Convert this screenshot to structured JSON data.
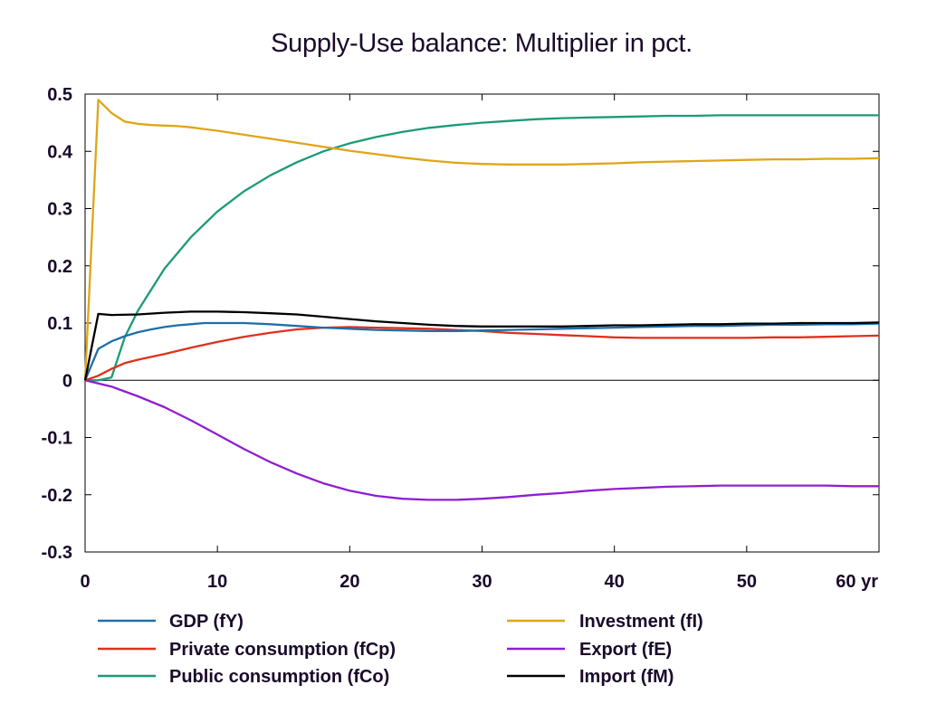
{
  "chart_data": {
    "type": "line",
    "title": "Supply-Use balance: Multiplier in pct.",
    "xlabel": "",
    "ylabel": "",
    "x_unit_label": "yr",
    "xlim": [
      0,
      60
    ],
    "ylim": [
      -0.3,
      0.5
    ],
    "x_ticks": [
      0,
      10,
      20,
      30,
      40,
      50,
      60
    ],
    "y_ticks": [
      -0.3,
      -0.2,
      -0.1,
      0,
      0.1,
      0.2,
      0.3,
      0.4,
      0.5
    ],
    "zero_line": true,
    "grid": false,
    "legend_position": "bottom",
    "series": [
      {
        "name": "GDP (fY)",
        "color": "#1f6fa8",
        "x": [
          0,
          1,
          2,
          3,
          4,
          5,
          6,
          7,
          8,
          9,
          10,
          12,
          14,
          16,
          18,
          20,
          22,
          24,
          26,
          28,
          30,
          32,
          34,
          36,
          38,
          40,
          42,
          44,
          46,
          48,
          50,
          52,
          54,
          56,
          58,
          60
        ],
        "y": [
          0,
          0.055,
          0.068,
          0.077,
          0.084,
          0.089,
          0.093,
          0.096,
          0.098,
          0.1,
          0.1,
          0.1,
          0.098,
          0.095,
          0.092,
          0.09,
          0.088,
          0.087,
          0.086,
          0.086,
          0.087,
          0.088,
          0.089,
          0.09,
          0.091,
          0.092,
          0.093,
          0.094,
          0.095,
          0.095,
          0.096,
          0.097,
          0.097,
          0.098,
          0.098,
          0.099
        ]
      },
      {
        "name": "Investment (fI)",
        "color": "#e0a517",
        "x": [
          0,
          1,
          2,
          3,
          4,
          5,
          6,
          7,
          8,
          9,
          10,
          12,
          14,
          16,
          18,
          20,
          22,
          24,
          26,
          28,
          30,
          32,
          34,
          36,
          38,
          40,
          42,
          44,
          46,
          48,
          50,
          52,
          54,
          56,
          58,
          60
        ],
        "y": [
          0,
          0.49,
          0.467,
          0.452,
          0.448,
          0.446,
          0.445,
          0.444,
          0.442,
          0.439,
          0.436,
          0.429,
          0.422,
          0.415,
          0.408,
          0.401,
          0.395,
          0.389,
          0.384,
          0.38,
          0.378,
          0.377,
          0.377,
          0.377,
          0.378,
          0.379,
          0.381,
          0.382,
          0.383,
          0.384,
          0.385,
          0.386,
          0.386,
          0.387,
          0.387,
          0.388
        ]
      },
      {
        "name": "Private consumption (fCp)",
        "color": "#e0301e",
        "x": [
          0,
          1,
          2,
          3,
          4,
          6,
          8,
          10,
          12,
          14,
          16,
          18,
          20,
          22,
          24,
          26,
          28,
          30,
          32,
          34,
          36,
          38,
          40,
          42,
          44,
          46,
          48,
          50,
          52,
          54,
          56,
          58,
          60
        ],
        "y": [
          0,
          0.008,
          0.02,
          0.03,
          0.036,
          0.046,
          0.057,
          0.067,
          0.076,
          0.083,
          0.089,
          0.092,
          0.093,
          0.092,
          0.091,
          0.09,
          0.088,
          0.086,
          0.083,
          0.081,
          0.079,
          0.077,
          0.075,
          0.074,
          0.074,
          0.074,
          0.074,
          0.074,
          0.075,
          0.075,
          0.076,
          0.077,
          0.078
        ]
      },
      {
        "name": "Export (fE)",
        "color": "#8e1fd0",
        "x": [
          0,
          2,
          4,
          6,
          8,
          10,
          12,
          14,
          16,
          18,
          20,
          22,
          24,
          26,
          28,
          30,
          32,
          34,
          36,
          38,
          40,
          42,
          44,
          46,
          48,
          50,
          52,
          54,
          56,
          58,
          60
        ],
        "y": [
          0,
          -0.011,
          -0.028,
          -0.047,
          -0.07,
          -0.095,
          -0.12,
          -0.143,
          -0.163,
          -0.18,
          -0.193,
          -0.202,
          -0.207,
          -0.209,
          -0.209,
          -0.207,
          -0.204,
          -0.2,
          -0.197,
          -0.193,
          -0.19,
          -0.188,
          -0.186,
          -0.185,
          -0.184,
          -0.184,
          -0.184,
          -0.184,
          -0.184,
          -0.185,
          -0.185
        ]
      },
      {
        "name": "Public consumption (fCo)",
        "color": "#1a9b78",
        "x": [
          0,
          1,
          2,
          3,
          4,
          6,
          8,
          10,
          12,
          14,
          16,
          18,
          20,
          22,
          24,
          26,
          28,
          30,
          32,
          34,
          36,
          38,
          40,
          42,
          44,
          46,
          48,
          50,
          52,
          54,
          56,
          58,
          60
        ],
        "y": [
          0,
          0,
          0.005,
          0.075,
          0.122,
          0.195,
          0.25,
          0.295,
          0.33,
          0.358,
          0.381,
          0.4,
          0.414,
          0.425,
          0.434,
          0.441,
          0.446,
          0.45,
          0.453,
          0.456,
          0.458,
          0.459,
          0.46,
          0.461,
          0.462,
          0.462,
          0.463,
          0.463,
          0.463,
          0.463,
          0.463,
          0.463,
          0.463
        ]
      },
      {
        "name": "Import (fM)",
        "color": "#000000",
        "x": [
          0,
          1,
          2,
          4,
          6,
          8,
          10,
          12,
          14,
          16,
          18,
          20,
          22,
          24,
          26,
          28,
          30,
          32,
          34,
          36,
          38,
          40,
          42,
          44,
          46,
          48,
          50,
          52,
          54,
          56,
          58,
          60
        ],
        "y": [
          0,
          0.116,
          0.114,
          0.115,
          0.118,
          0.12,
          0.12,
          0.119,
          0.117,
          0.115,
          0.111,
          0.107,
          0.103,
          0.1,
          0.097,
          0.095,
          0.094,
          0.094,
          0.094,
          0.094,
          0.095,
          0.096,
          0.096,
          0.097,
          0.098,
          0.098,
          0.099,
          0.099,
          0.1,
          0.1,
          0.1,
          0.101
        ]
      }
    ],
    "legend_order": [
      "GDP (fY)",
      "Investment (fI)",
      "Private consumption (fCp)",
      "Export (fE)",
      "Public consumption (fCo)",
      "Import (fM)"
    ]
  }
}
